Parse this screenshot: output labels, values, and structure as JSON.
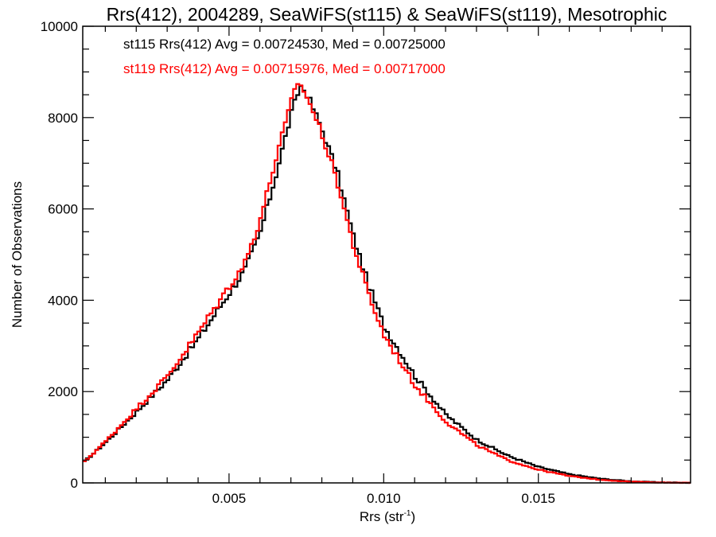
{
  "chart_data": {
    "type": "line",
    "style": "histogram-step",
    "title": "Rrs(412), 2004289, SeaWiFS(st115) & SeaWiFS(st119), Mesotrophic",
    "xlabel_main": "Rrs (str",
    "xlabel_sup": "-1",
    "xlabel_close": ")",
    "ylabel": "Number of Observations",
    "xlim": [
      0.00027,
      0.01992
    ],
    "ylim": [
      0,
      10000
    ],
    "x_ticks": [
      0.005,
      0.01,
      0.015
    ],
    "x_tick_labels": [
      "0.005",
      "0.010",
      "0.015"
    ],
    "x_minor_step": 0.001,
    "y_ticks": [
      0,
      2000,
      4000,
      6000,
      8000,
      10000
    ],
    "y_tick_labels": [
      "0",
      "2000",
      "4000",
      "6000",
      "8000",
      "10000"
    ],
    "y_minor_step": 500,
    "grid": false,
    "annotations": [
      {
        "text": "st115 Rrs(412) Avg = 0.00724530, Med = 0.00725000",
        "color": "#000000"
      },
      {
        "text": "st119 Rrs(412) Avg = 0.00715976, Med = 0.00717000",
        "color": "#ff0000"
      }
    ],
    "series": [
      {
        "name": "st115",
        "color": "#000000",
        "x": [
          0.0003,
          0.001,
          0.002,
          0.003,
          0.004,
          0.005,
          0.0055,
          0.006,
          0.0065,
          0.007,
          0.0073,
          0.0075,
          0.008,
          0.0085,
          0.009,
          0.0095,
          0.01,
          0.011,
          0.012,
          0.013,
          0.014,
          0.015,
          0.016,
          0.017,
          0.018,
          0.019,
          0.0199
        ],
        "values": [
          450,
          880,
          1550,
          2250,
          3150,
          4150,
          4650,
          5450,
          6700,
          8050,
          8700,
          8550,
          7750,
          6800,
          5450,
          4350,
          3450,
          2350,
          1500,
          950,
          600,
          350,
          190,
          90,
          35,
          10,
          3
        ]
      },
      {
        "name": "st119",
        "color": "#ff0000",
        "x": [
          0.0003,
          0.001,
          0.002,
          0.003,
          0.004,
          0.005,
          0.0055,
          0.006,
          0.0065,
          0.007,
          0.0072,
          0.0075,
          0.008,
          0.0085,
          0.009,
          0.0095,
          0.01,
          0.011,
          0.012,
          0.013,
          0.014,
          0.015,
          0.016,
          0.017,
          0.018,
          0.019,
          0.0199
        ],
        "values": [
          450,
          900,
          1620,
          2330,
          3280,
          4300,
          4800,
          5750,
          7050,
          8300,
          8800,
          8500,
          7650,
          6600,
          5250,
          4150,
          3250,
          2150,
          1350,
          830,
          500,
          290,
          150,
          70,
          25,
          8,
          2
        ]
      }
    ]
  }
}
